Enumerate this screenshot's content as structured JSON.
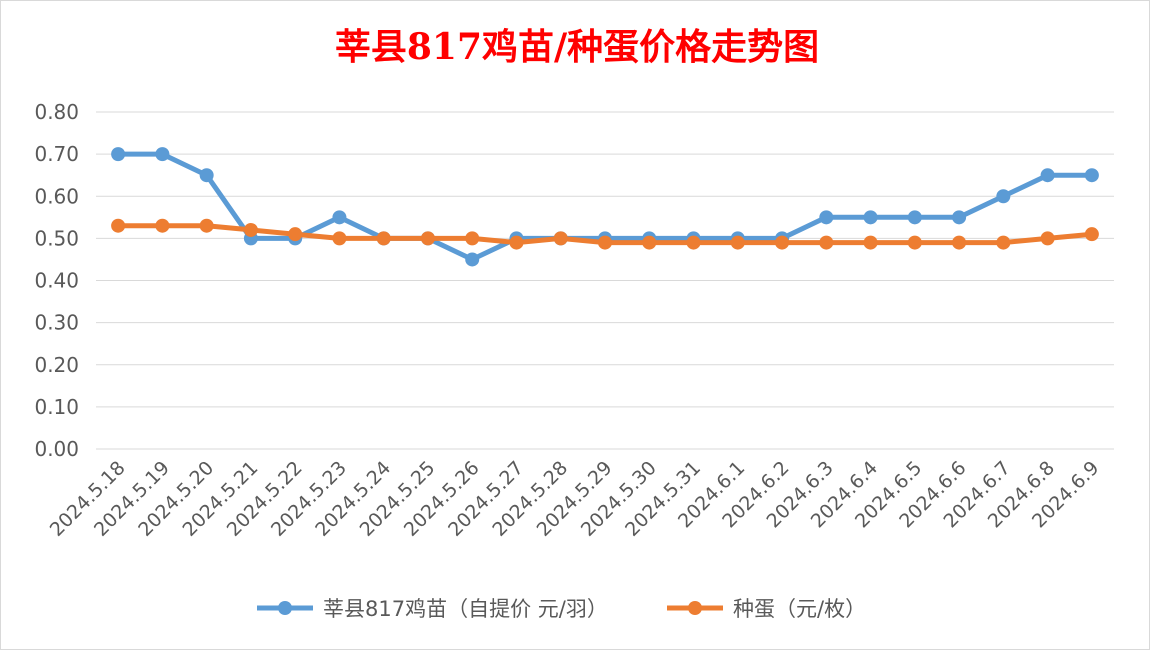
{
  "chart_data": {
    "type": "line",
    "title": "莘县817鸡苗/种蛋价格走势图",
    "categories": [
      "2024.5.18",
      "2024.5.19",
      "2024.5.20",
      "2024.5.21",
      "2024.5.22",
      "2024.5.23",
      "2024.5.24",
      "2024.5.25",
      "2024.5.26",
      "2024.5.27",
      "2024.5.28",
      "2024.5.29",
      "2024.5.30",
      "2024.5.31",
      "2024.6.1",
      "2024.6.2",
      "2024.6.3",
      "2024.6.4",
      "2024.6.5",
      "2024.6.6",
      "2024.6.7",
      "2024.6.8",
      "2024.6.9"
    ],
    "series": [
      {
        "name": "莘县817鸡苗（自提价 元/羽）",
        "color": "#5b9bd5",
        "values": [
          0.7,
          0.7,
          0.65,
          0.5,
          0.5,
          0.55,
          0.5,
          0.5,
          0.45,
          0.5,
          0.5,
          0.5,
          0.5,
          0.5,
          0.5,
          0.5,
          0.55,
          0.55,
          0.55,
          0.55,
          0.6,
          0.65,
          0.65
        ]
      },
      {
        "name": "种蛋（元/枚）",
        "color": "#ed7d31",
        "values": [
          0.53,
          0.53,
          0.53,
          0.52,
          0.51,
          0.5,
          0.5,
          0.5,
          0.5,
          0.49,
          0.5,
          0.49,
          0.49,
          0.49,
          0.49,
          0.49,
          0.49,
          0.49,
          0.49,
          0.49,
          0.49,
          0.5,
          0.51
        ]
      }
    ],
    "yticks": [
      "0.00",
      "0.10",
      "0.20",
      "0.30",
      "0.40",
      "0.50",
      "0.60",
      "0.70",
      "0.80"
    ],
    "ylim": [
      0,
      0.8
    ],
    "xlabel": "",
    "ylabel": "",
    "grid": true,
    "legend": "bottom"
  }
}
